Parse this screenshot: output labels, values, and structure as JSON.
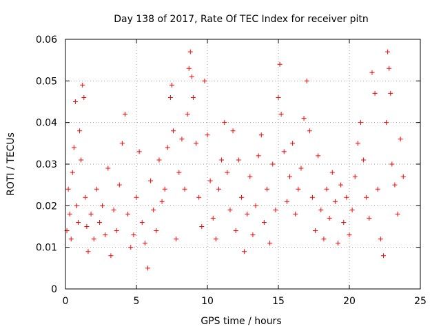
{
  "chart_data": {
    "type": "scatter",
    "title": "Day 138 of 2017, Rate Of TEC Index for receiver pitn",
    "xlabel": "GPS time / hours",
    "ylabel": "ROTI / TECUs",
    "xlim": [
      0,
      25
    ],
    "ylim": [
      0,
      0.06
    ],
    "xticks": [
      0,
      5,
      10,
      15,
      20,
      25
    ],
    "yticks": [
      0,
      0.01,
      0.02,
      0.03,
      0.04,
      0.05,
      0.06
    ],
    "xtick_labels": [
      "0",
      "5",
      "10",
      "15",
      "20",
      "25"
    ],
    "ytick_labels": [
      "0",
      "0.01",
      "0.02",
      "0.03",
      "0.04",
      "0.05",
      "0.06"
    ],
    "grid": true,
    "marker": "+",
    "marker_color": "#ff0000",
    "series": [
      {
        "name": "ROTI",
        "points": [
          [
            0.1,
            0.014
          ],
          [
            0.2,
            0.024
          ],
          [
            0.3,
            0.018
          ],
          [
            0.4,
            0.012
          ],
          [
            0.5,
            0.028
          ],
          [
            0.6,
            0.034
          ],
          [
            0.7,
            0.045
          ],
          [
            0.8,
            0.02
          ],
          [
            0.9,
            0.016
          ],
          [
            1.0,
            0.038
          ],
          [
            1.1,
            0.031
          ],
          [
            1.2,
            0.049
          ],
          [
            1.3,
            0.046
          ],
          [
            1.4,
            0.022
          ],
          [
            1.5,
            0.015
          ],
          [
            1.6,
            0.009
          ],
          [
            1.8,
            0.018
          ],
          [
            2.0,
            0.012
          ],
          [
            2.2,
            0.024
          ],
          [
            2.4,
            0.016
          ],
          [
            2.6,
            0.02
          ],
          [
            2.8,
            0.013
          ],
          [
            3.0,
            0.029
          ],
          [
            3.2,
            0.008
          ],
          [
            3.4,
            0.019
          ],
          [
            3.6,
            0.014
          ],
          [
            3.8,
            0.025
          ],
          [
            4.0,
            0.035
          ],
          [
            4.2,
            0.042
          ],
          [
            4.4,
            0.018
          ],
          [
            4.6,
            0.01
          ],
          [
            4.8,
            0.013
          ],
          [
            5.0,
            0.022
          ],
          [
            5.2,
            0.033
          ],
          [
            5.4,
            0.016
          ],
          [
            5.6,
            0.011
          ],
          [
            5.8,
            0.005
          ],
          [
            6.0,
            0.026
          ],
          [
            6.2,
            0.019
          ],
          [
            6.4,
            0.014
          ],
          [
            6.6,
            0.031
          ],
          [
            6.8,
            0.021
          ],
          [
            7.0,
            0.024
          ],
          [
            7.2,
            0.034
          ],
          [
            7.4,
            0.046
          ],
          [
            7.5,
            0.049
          ],
          [
            7.6,
            0.038
          ],
          [
            7.8,
            0.012
          ],
          [
            8.0,
            0.028
          ],
          [
            8.2,
            0.036
          ],
          [
            8.4,
            0.024
          ],
          [
            8.6,
            0.042
          ],
          [
            8.7,
            0.053
          ],
          [
            8.8,
            0.057
          ],
          [
            8.9,
            0.051
          ],
          [
            9.0,
            0.046
          ],
          [
            9.2,
            0.035
          ],
          [
            9.4,
            0.022
          ],
          [
            9.6,
            0.015
          ],
          [
            9.8,
            0.05
          ],
          [
            10.0,
            0.037
          ],
          [
            10.2,
            0.026
          ],
          [
            10.4,
            0.017
          ],
          [
            10.6,
            0.012
          ],
          [
            10.8,
            0.024
          ],
          [
            11.0,
            0.031
          ],
          [
            11.2,
            0.04
          ],
          [
            11.4,
            0.028
          ],
          [
            11.6,
            0.019
          ],
          [
            11.8,
            0.038
          ],
          [
            12.0,
            0.014
          ],
          [
            12.2,
            0.031
          ],
          [
            12.4,
            0.022
          ],
          [
            12.6,
            0.009
          ],
          [
            12.8,
            0.018
          ],
          [
            13.0,
            0.027
          ],
          [
            13.2,
            0.013
          ],
          [
            13.4,
            0.02
          ],
          [
            13.6,
            0.032
          ],
          [
            13.8,
            0.037
          ],
          [
            14.0,
            0.016
          ],
          [
            14.2,
            0.024
          ],
          [
            14.4,
            0.011
          ],
          [
            14.6,
            0.03
          ],
          [
            14.8,
            0.019
          ],
          [
            15.0,
            0.046
          ],
          [
            15.1,
            0.054
          ],
          [
            15.2,
            0.042
          ],
          [
            15.4,
            0.033
          ],
          [
            15.6,
            0.021
          ],
          [
            15.8,
            0.027
          ],
          [
            16.0,
            0.035
          ],
          [
            16.2,
            0.018
          ],
          [
            16.4,
            0.024
          ],
          [
            16.6,
            0.029
          ],
          [
            16.8,
            0.041
          ],
          [
            17.0,
            0.05
          ],
          [
            17.2,
            0.038
          ],
          [
            17.4,
            0.022
          ],
          [
            17.6,
            0.014
          ],
          [
            17.8,
            0.032
          ],
          [
            18.0,
            0.019
          ],
          [
            18.2,
            0.012
          ],
          [
            18.4,
            0.024
          ],
          [
            18.6,
            0.017
          ],
          [
            18.8,
            0.028
          ],
          [
            19.0,
            0.021
          ],
          [
            19.2,
            0.011
          ],
          [
            19.4,
            0.025
          ],
          [
            19.6,
            0.016
          ],
          [
            19.8,
            0.022
          ],
          [
            20.0,
            0.013
          ],
          [
            20.2,
            0.019
          ],
          [
            20.4,
            0.027
          ],
          [
            20.6,
            0.035
          ],
          [
            20.8,
            0.04
          ],
          [
            21.0,
            0.031
          ],
          [
            21.2,
            0.022
          ],
          [
            21.4,
            0.017
          ],
          [
            21.6,
            0.052
          ],
          [
            21.8,
            0.047
          ],
          [
            22.0,
            0.024
          ],
          [
            22.2,
            0.012
          ],
          [
            22.4,
            0.008
          ],
          [
            22.6,
            0.04
          ],
          [
            22.7,
            0.057
          ],
          [
            22.8,
            0.053
          ],
          [
            22.9,
            0.047
          ],
          [
            23.0,
            0.03
          ],
          [
            23.2,
            0.025
          ],
          [
            23.4,
            0.018
          ],
          [
            23.6,
            0.036
          ],
          [
            23.8,
            0.027
          ]
        ]
      }
    ]
  }
}
